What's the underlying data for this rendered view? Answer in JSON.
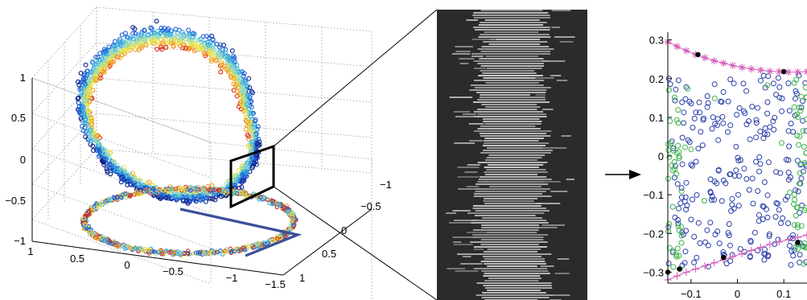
{
  "chart_data": [
    {
      "type": "scatter",
      "panel": "3d-point-cloud",
      "title": "",
      "xlabel": "",
      "ylabel": "",
      "zlabel": "",
      "grid": true,
      "z_ticks": [
        "1",
        "0.5",
        "0",
        "−0.5",
        "−1"
      ],
      "x_ticks": [
        "1",
        "0.5",
        "0",
        "−0.5",
        "−1",
        "−1.5"
      ],
      "y_ticks": [
        "−1",
        "−0.5",
        "0",
        "0.5",
        "1"
      ],
      "xlim": [
        -1.5,
        1
      ],
      "ylim": [
        -1,
        1
      ],
      "zlim": [
        -1,
        1
      ],
      "colormap": [
        "#0b1f8a",
        "#1f5fd1",
        "#38a9df",
        "#8fd8c6",
        "#e7e24a",
        "#f29a2a",
        "#d62a1c"
      ],
      "series": [
        {
          "shape": "twisted-loop upper ring",
          "z_range": [
            -0.3,
            1.0
          ]
        },
        {
          "shape": "lower ring",
          "z_range": [
            -0.55,
            -0.3
          ]
        }
      ],
      "section_plane": {
        "color": "#000000"
      },
      "projection_line": {
        "color": "#3b4f9a"
      }
    },
    {
      "type": "heatmap",
      "panel": "grayscale-cross-section",
      "background": "#2b2b2b",
      "band_color": "#cfcfcf"
    },
    {
      "type": "scatter",
      "panel": "2d-section",
      "title": "",
      "xlabel": "",
      "ylabel": "",
      "xlim": [
        -0.15,
        0.15
      ],
      "ylim": [
        -0.32,
        0.32
      ],
      "y_ticks": [
        0.3,
        0.2,
        0.1,
        0,
        -0.1,
        -0.2,
        -0.3
      ],
      "y_tick_labels": [
        "0.3",
        "0.2",
        "0.1",
        "0",
        "−0.1",
        "−0.2",
        "−0.3"
      ],
      "x_ticks": [
        -0.1,
        0,
        0.1
      ],
      "x_tick_labels": [
        "−0.1",
        "0",
        "0.1"
      ],
      "series": [
        {
          "marker": "circle",
          "color": "#2b3fa8"
        },
        {
          "marker": "circle",
          "color": "#3cb34a"
        },
        {
          "marker": "asterisk",
          "color": "#d35fb8",
          "x": [
            -0.15,
            -0.13,
            -0.11,
            -0.09,
            -0.07,
            -0.05,
            -0.03,
            -0.01,
            0.01,
            0.03,
            0.05,
            0.07,
            0.09,
            0.11,
            0.13,
            0.15
          ],
          "y": [
            0.295,
            0.283,
            0.272,
            0.262,
            0.254,
            0.246,
            0.24,
            0.234,
            0.229,
            0.225,
            0.222,
            0.219,
            0.218,
            0.217,
            0.217,
            0.218
          ]
        },
        {
          "marker": "plus",
          "color": "#d35fb8",
          "x": [
            -0.15,
            -0.13,
            -0.11,
            -0.09,
            -0.07,
            -0.05,
            -0.03,
            -0.01,
            0.01,
            0.03,
            0.05,
            0.07,
            0.09,
            0.11,
            0.13,
            0.15
          ],
          "y": [
            -0.32,
            -0.31,
            -0.3,
            -0.292,
            -0.284,
            -0.276,
            -0.268,
            -0.26,
            -0.252,
            -0.244,
            -0.236,
            -0.228,
            -0.222,
            -0.216,
            -0.21,
            -0.204
          ]
        },
        {
          "marker": "dot",
          "color": "#000000",
          "x": [
            -0.085,
            0.1,
            -0.15,
            -0.125,
            -0.03,
            0.13
          ],
          "y": [
            0.262,
            0.218,
            -0.3,
            -0.292,
            -0.262,
            -0.223
          ]
        }
      ],
      "arrow": {
        "color": "#000000"
      }
    }
  ]
}
